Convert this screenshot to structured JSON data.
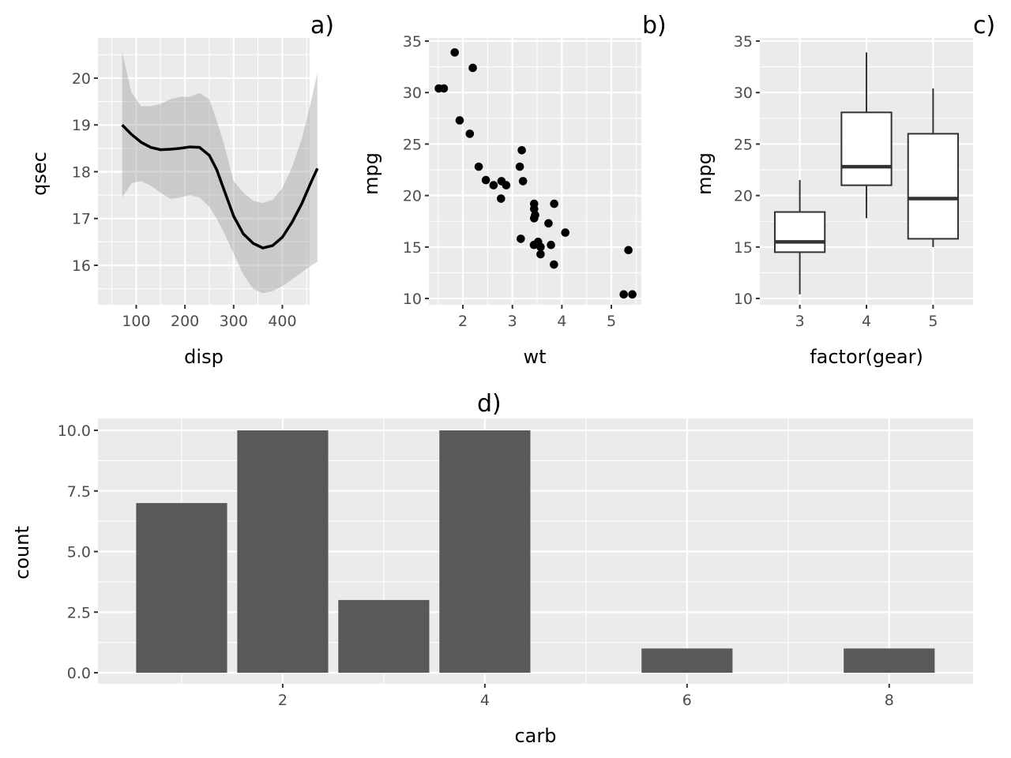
{
  "chart_data": [
    {
      "id": "a",
      "type": "line",
      "title": "a)",
      "xlabel": "disp",
      "ylabel": "qsec",
      "xlim": [
        21.4,
        456
      ],
      "ylim": [
        15.156,
        20.86
      ],
      "xticks": [
        100,
        200,
        300,
        400
      ],
      "yticks": [
        16,
        17,
        18,
        19,
        20
      ],
      "xtick_labels": [
        "100",
        "200",
        "300",
        "400"
      ],
      "ytick_labels": [
        "16",
        "17",
        "18",
        "19",
        "20"
      ],
      "grid": true,
      "series": [
        {
          "name": "smooth",
          "x": [
            71.1,
            90,
            110,
            130,
            150,
            170,
            190,
            210,
            230,
            250,
            265,
            280,
            300,
            320,
            340,
            360,
            380,
            400,
            420,
            440,
            460,
            472
          ],
          "y": [
            19.0,
            18.8,
            18.63,
            18.52,
            18.47,
            18.48,
            18.5,
            18.53,
            18.52,
            18.35,
            18.05,
            17.62,
            17.05,
            16.67,
            16.47,
            16.37,
            16.42,
            16.6,
            16.92,
            17.32,
            17.8,
            18.07
          ],
          "ymin": [
            17.45,
            17.75,
            17.8,
            17.7,
            17.55,
            17.42,
            17.45,
            17.5,
            17.45,
            17.25,
            17.0,
            16.7,
            16.25,
            15.8,
            15.5,
            15.4,
            15.45,
            15.55,
            15.7,
            15.85,
            16.0,
            16.07
          ],
          "ymax": [
            20.56,
            19.7,
            19.4,
            19.4,
            19.45,
            19.55,
            19.6,
            19.6,
            19.68,
            19.55,
            19.1,
            18.6,
            17.8,
            17.55,
            17.38,
            17.33,
            17.4,
            17.65,
            18.1,
            18.7,
            19.55,
            20.12
          ]
        }
      ]
    },
    {
      "id": "b",
      "type": "scatter",
      "title": "b)",
      "xlabel": "wt",
      "ylabel": "mpg",
      "xlim": [
        1.313,
        5.606
      ],
      "ylim": [
        9.39,
        35.31
      ],
      "xticks": [
        2,
        3,
        4,
        5
      ],
      "yticks": [
        10,
        15,
        20,
        25,
        30,
        35
      ],
      "xtick_labels": [
        "2",
        "3",
        "4",
        "5"
      ],
      "ytick_labels": [
        "10",
        "15",
        "20",
        "25",
        "30",
        "35"
      ],
      "grid": true,
      "x": [
        2.62,
        2.875,
        2.32,
        3.215,
        3.44,
        3.46,
        3.57,
        3.19,
        3.15,
        3.44,
        3.44,
        4.07,
        3.73,
        3.78,
        5.25,
        5.424,
        5.345,
        2.2,
        1.615,
        1.835,
        2.465,
        3.52,
        3.435,
        3.84,
        3.845,
        1.935,
        2.14,
        1.513,
        3.17,
        2.77,
        3.57,
        2.78
      ],
      "y": [
        21.0,
        21.0,
        22.8,
        21.4,
        18.7,
        18.1,
        14.3,
        24.4,
        22.8,
        19.2,
        17.8,
        16.4,
        17.3,
        15.2,
        10.4,
        10.4,
        14.7,
        32.4,
        30.4,
        33.9,
        21.5,
        15.5,
        15.2,
        13.3,
        19.2,
        27.3,
        26.0,
        30.4,
        15.8,
        19.7,
        15.0,
        21.4
      ]
    },
    {
      "id": "c",
      "type": "box",
      "title": "c)",
      "xlabel": "factor(gear)",
      "ylabel": "mpg",
      "ylim": [
        9.39,
        35.31
      ],
      "categories": [
        "3",
        "4",
        "5"
      ],
      "yticks": [
        10,
        15,
        20,
        25,
        30,
        35
      ],
      "ytick_labels": [
        "10",
        "15",
        "20",
        "25",
        "30",
        "35"
      ],
      "grid": true,
      "boxes": [
        {
          "category": "3",
          "min": 10.4,
          "q1": 14.5,
          "median": 15.5,
          "q3": 18.4,
          "max": 21.5
        },
        {
          "category": "4",
          "min": 17.8,
          "q1": 21.0,
          "median": 22.8,
          "q3": 28.075,
          "max": 33.9
        },
        {
          "category": "5",
          "min": 15.0,
          "q1": 15.8,
          "median": 19.7,
          "q3": 26.0,
          "max": 30.4
        }
      ]
    },
    {
      "id": "d",
      "type": "bar",
      "title": "d)",
      "xlabel": "carb",
      "ylabel": "count",
      "xlim": [
        0.172,
        8.83
      ],
      "ylim": [
        -0.456,
        10.49
      ],
      "categories": [
        1,
        2,
        3,
        4,
        6,
        8
      ],
      "values": [
        7,
        10,
        3,
        10,
        1,
        1
      ],
      "xticks": [
        2,
        4,
        6,
        8
      ],
      "xtick_labels": [
        "2",
        "4",
        "6",
        "8"
      ],
      "yticks": [
        0,
        2.5,
        5,
        7.5,
        10
      ],
      "ytick_labels": [
        "0.0",
        "2.5",
        "5.0",
        "7.5",
        "10.0"
      ],
      "grid": true
    }
  ],
  "colors": {
    "panel_bg": "#ebebeb",
    "grid": "#ffffff",
    "bar_fill": "#595959",
    "ribbon": "#c8c8c8",
    "line": "#000000",
    "box_stroke": "#333333"
  }
}
